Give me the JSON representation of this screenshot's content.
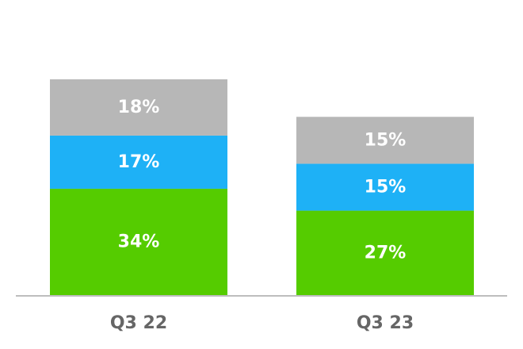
{
  "chart_data": {
    "type": "bar",
    "stacked": true,
    "categories": [
      "Q3 22",
      "Q3 23"
    ],
    "series": [
      {
        "values": [
          34,
          27
        ],
        "labels": [
          "34%",
          "27%"
        ],
        "color": "#55cc00"
      },
      {
        "values": [
          17,
          15
        ],
        "labels": [
          "17%",
          "15%"
        ],
        "color": "#1eb1f6"
      },
      {
        "values": [
          18,
          15
        ],
        "labels": [
          "18%",
          "15%"
        ],
        "color": "#b7b7b7"
      }
    ],
    "ylim": [
      0,
      75
    ],
    "grid": false,
    "legend": "none",
    "axis_color": "#bdbdbd"
  }
}
